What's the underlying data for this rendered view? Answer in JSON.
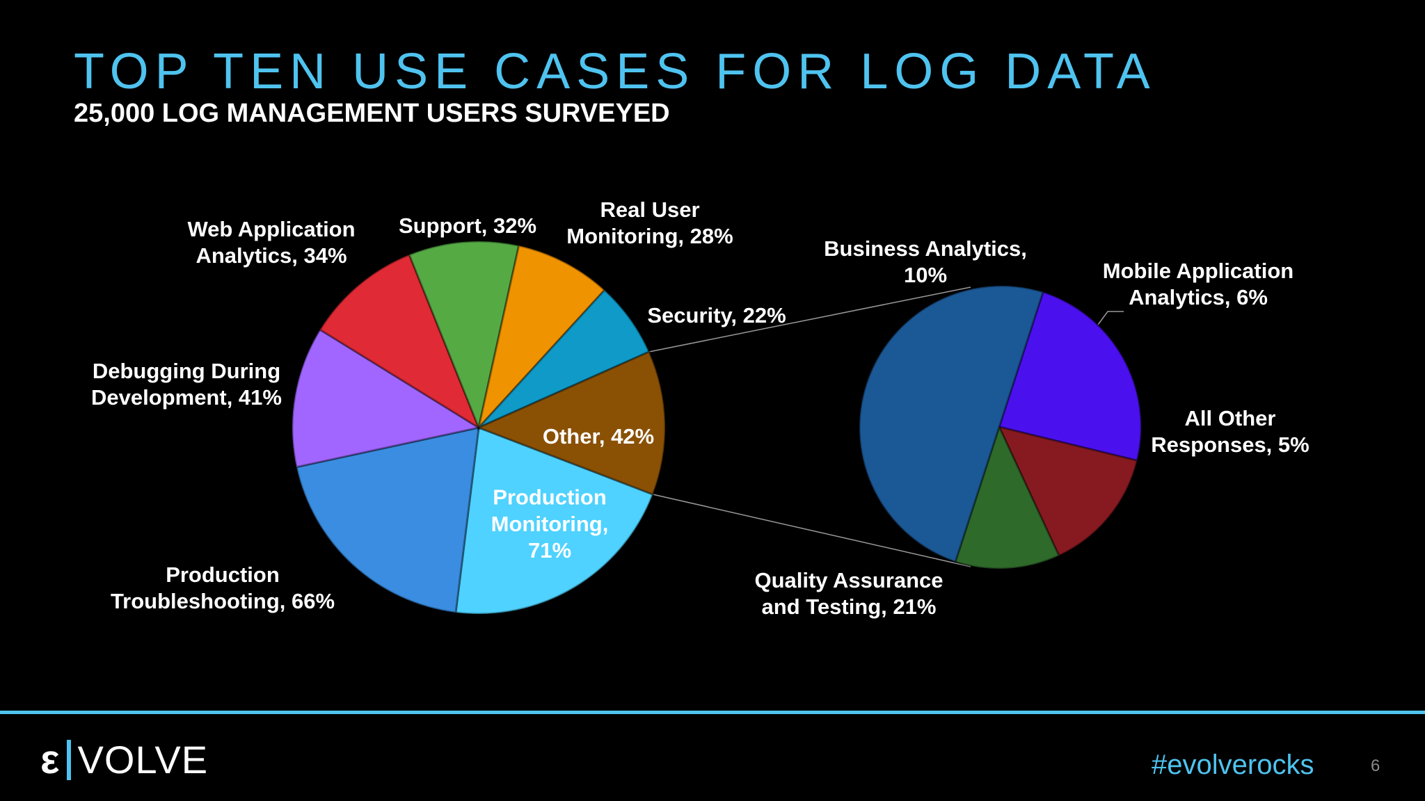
{
  "header": {
    "title": "TOP TEN USE CASES FOR LOG DATA",
    "subtitle": "25,000 LOG MANAGEMENT USERS SURVEYED"
  },
  "chart_data": [
    {
      "type": "pie",
      "slices": [
        {
          "label": [
            "Production",
            "Monitoring,",
            "71%"
          ],
          "value": 71,
          "color": "#4fd2ff"
        },
        {
          "label": [
            "Production",
            "Troubleshooting, 66%"
          ],
          "value": 66,
          "color": "#3a8de0"
        },
        {
          "label": [
            "Debugging During",
            "Development, 41%"
          ],
          "value": 41,
          "color": "#a066ff"
        },
        {
          "label": [
            "Web Application",
            "Analytics, 34%"
          ],
          "value": 34,
          "color": "#e02a35"
        },
        {
          "label": [
            "Support, 32%"
          ],
          "value": 32,
          "color": "#55aa44"
        },
        {
          "label": [
            "Real User",
            "Monitoring, 28%"
          ],
          "value": 28,
          "color": "#f09300"
        },
        {
          "label": [
            "Security, 22%"
          ],
          "value": 22,
          "color": "#0f9ac8"
        },
        {
          "label": [
            "Other, 42%"
          ],
          "value": 42,
          "color": "#8a5105"
        }
      ]
    },
    {
      "type": "pie",
      "slices": [
        {
          "label": [
            "Business Analytics,",
            "10%"
          ],
          "value": 10,
          "color": "#4b10ee"
        },
        {
          "label": [
            "Mobile Application",
            "Analytics, 6%"
          ],
          "value": 6,
          "color": "#861a20"
        },
        {
          "label": [
            "All Other",
            "Responses, 5%"
          ],
          "value": 5,
          "color": "#2e6a2a"
        },
        {
          "label": [
            "Quality Assurance",
            "and Testing, 21%"
          ],
          "value": 21,
          "color": "#1b5896"
        }
      ]
    }
  ],
  "footer": {
    "logo_mark": "ε",
    "logo_text": "VOLVE",
    "hashtag_prefix": "#evolve",
    "hashtag_suffix": "rocks",
    "page_number": "6",
    "accent_color": "#4fc3ef"
  }
}
